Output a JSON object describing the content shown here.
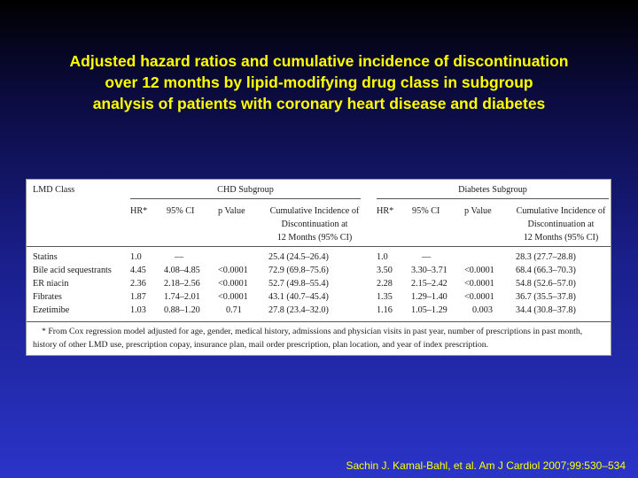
{
  "slide": {
    "title_lines": [
      "Adjusted hazard ratios and cumulative incidence of discontinuation",
      "over 12 months by lipid-modifying drug class in subgroup",
      "analysis of patients with coronary heart disease and diabetes"
    ],
    "citation": "Sachin J. Kamal-Bahl, et al. Am J Cardiol 2007;99:530–534"
  },
  "table": {
    "stub_header": "LMD Class",
    "groups": [
      "CHD Subgroup",
      "Diabetes Subgroup"
    ],
    "columns": [
      "HR*",
      "95% CI",
      "p Value",
      "Cumulative Incidence of",
      "Discontinuation at",
      "12 Months (95% CI)"
    ],
    "rows": [
      {
        "cls": "Statins",
        "chd": [
          "1.0",
          "—",
          "",
          "25.4 (24.5–26.4)"
        ],
        "dia": [
          "1.0",
          "—",
          "",
          "28.3 (27.7–28.8)"
        ]
      },
      {
        "cls": "Bile acid sequestrants",
        "chd": [
          "4.45",
          "4.08–4.85",
          "<0.0001",
          "72.9 (69.8–75.6)"
        ],
        "dia": [
          "3.50",
          "3.30–3.71",
          "<0.0001",
          "68.4 (66.3–70.3)"
        ]
      },
      {
        "cls": "ER niacin",
        "chd": [
          "2.36",
          "2.18–2.56",
          "<0.0001",
          "52.7 (49.8–55.4)"
        ],
        "dia": [
          "2.28",
          "2.15–2.42",
          "<0.0001",
          "54.8 (52.6–57.0)"
        ]
      },
      {
        "cls": "Fibrates",
        "chd": [
          "1.87",
          "1.74–2.01",
          "<0.0001",
          "43.1 (40.7–45.4)"
        ],
        "dia": [
          "1.35",
          "1.29–1.40",
          "<0.0001",
          "36.7 (35.5–37.8)"
        ]
      },
      {
        "cls": "Ezetimibe",
        "chd": [
          "1.03",
          "0.88–1.20",
          "0.71",
          "27.8 (23.4–32.0)"
        ],
        "dia": [
          "1.16",
          "1.05–1.29",
          "0.003",
          "34.4 (30.8–37.8)"
        ]
      }
    ],
    "footnote_lines": [
      "* From Cox regression model adjusted for age, gender, medical history, admissions and physician visits in past year, number of prescriptions in past month,",
      "history of other LMD use, prescription copay, insurance plan, mail order prescription, plan location, and year of index prescription."
    ]
  }
}
